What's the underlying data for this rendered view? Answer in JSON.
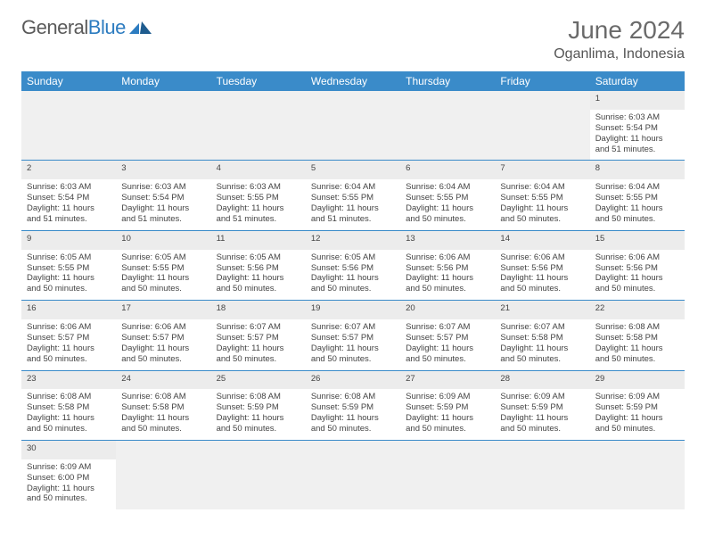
{
  "brand": {
    "name_a": "General",
    "name_b": "Blue"
  },
  "title": "June 2024",
  "location": "Oganlima, Indonesia",
  "colors": {
    "header_bg": "#3a8bc9",
    "header_fg": "#ffffff",
    "rule": "#3a8bc9",
    "daynum_bg": "#ececec",
    "logo_blue": "#2d7cc0"
  },
  "weekdays": [
    "Sunday",
    "Monday",
    "Tuesday",
    "Wednesday",
    "Thursday",
    "Friday",
    "Saturday"
  ],
  "weeks": [
    [
      null,
      null,
      null,
      null,
      null,
      null,
      {
        "d": "1",
        "sr": "6:03 AM",
        "ss": "5:54 PM",
        "dl": "11 hours and 51 minutes."
      }
    ],
    [
      {
        "d": "2",
        "sr": "6:03 AM",
        "ss": "5:54 PM",
        "dl": "11 hours and 51 minutes."
      },
      {
        "d": "3",
        "sr": "6:03 AM",
        "ss": "5:54 PM",
        "dl": "11 hours and 51 minutes."
      },
      {
        "d": "4",
        "sr": "6:03 AM",
        "ss": "5:55 PM",
        "dl": "11 hours and 51 minutes."
      },
      {
        "d": "5",
        "sr": "6:04 AM",
        "ss": "5:55 PM",
        "dl": "11 hours and 51 minutes."
      },
      {
        "d": "6",
        "sr": "6:04 AM",
        "ss": "5:55 PM",
        "dl": "11 hours and 50 minutes."
      },
      {
        "d": "7",
        "sr": "6:04 AM",
        "ss": "5:55 PM",
        "dl": "11 hours and 50 minutes."
      },
      {
        "d": "8",
        "sr": "6:04 AM",
        "ss": "5:55 PM",
        "dl": "11 hours and 50 minutes."
      }
    ],
    [
      {
        "d": "9",
        "sr": "6:05 AM",
        "ss": "5:55 PM",
        "dl": "11 hours and 50 minutes."
      },
      {
        "d": "10",
        "sr": "6:05 AM",
        "ss": "5:55 PM",
        "dl": "11 hours and 50 minutes."
      },
      {
        "d": "11",
        "sr": "6:05 AM",
        "ss": "5:56 PM",
        "dl": "11 hours and 50 minutes."
      },
      {
        "d": "12",
        "sr": "6:05 AM",
        "ss": "5:56 PM",
        "dl": "11 hours and 50 minutes."
      },
      {
        "d": "13",
        "sr": "6:06 AM",
        "ss": "5:56 PM",
        "dl": "11 hours and 50 minutes."
      },
      {
        "d": "14",
        "sr": "6:06 AM",
        "ss": "5:56 PM",
        "dl": "11 hours and 50 minutes."
      },
      {
        "d": "15",
        "sr": "6:06 AM",
        "ss": "5:56 PM",
        "dl": "11 hours and 50 minutes."
      }
    ],
    [
      {
        "d": "16",
        "sr": "6:06 AM",
        "ss": "5:57 PM",
        "dl": "11 hours and 50 minutes."
      },
      {
        "d": "17",
        "sr": "6:06 AM",
        "ss": "5:57 PM",
        "dl": "11 hours and 50 minutes."
      },
      {
        "d": "18",
        "sr": "6:07 AM",
        "ss": "5:57 PM",
        "dl": "11 hours and 50 minutes."
      },
      {
        "d": "19",
        "sr": "6:07 AM",
        "ss": "5:57 PM",
        "dl": "11 hours and 50 minutes."
      },
      {
        "d": "20",
        "sr": "6:07 AM",
        "ss": "5:57 PM",
        "dl": "11 hours and 50 minutes."
      },
      {
        "d": "21",
        "sr": "6:07 AM",
        "ss": "5:58 PM",
        "dl": "11 hours and 50 minutes."
      },
      {
        "d": "22",
        "sr": "6:08 AM",
        "ss": "5:58 PM",
        "dl": "11 hours and 50 minutes."
      }
    ],
    [
      {
        "d": "23",
        "sr": "6:08 AM",
        "ss": "5:58 PM",
        "dl": "11 hours and 50 minutes."
      },
      {
        "d": "24",
        "sr": "6:08 AM",
        "ss": "5:58 PM",
        "dl": "11 hours and 50 minutes."
      },
      {
        "d": "25",
        "sr": "6:08 AM",
        "ss": "5:59 PM",
        "dl": "11 hours and 50 minutes."
      },
      {
        "d": "26",
        "sr": "6:08 AM",
        "ss": "5:59 PM",
        "dl": "11 hours and 50 minutes."
      },
      {
        "d": "27",
        "sr": "6:09 AM",
        "ss": "5:59 PM",
        "dl": "11 hours and 50 minutes."
      },
      {
        "d": "28",
        "sr": "6:09 AM",
        "ss": "5:59 PM",
        "dl": "11 hours and 50 minutes."
      },
      {
        "d": "29",
        "sr": "6:09 AM",
        "ss": "5:59 PM",
        "dl": "11 hours and 50 minutes."
      }
    ],
    [
      {
        "d": "30",
        "sr": "6:09 AM",
        "ss": "6:00 PM",
        "dl": "11 hours and 50 minutes."
      },
      null,
      null,
      null,
      null,
      null,
      null
    ]
  ],
  "labels": {
    "sunrise": "Sunrise:",
    "sunset": "Sunset:",
    "daylight": "Daylight:"
  }
}
